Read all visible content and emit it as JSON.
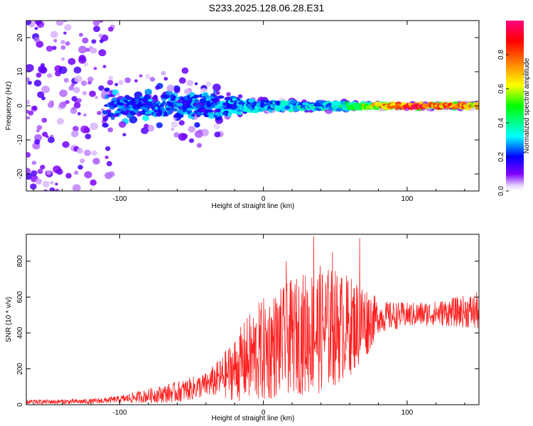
{
  "title": "S233.2025.128.06.28.E31",
  "chart_data": [
    {
      "type": "heatmap",
      "xlabel": "Height of straight line (km)",
      "ylabel": "Frequency (Hz)",
      "xlim": [
        -165,
        150
      ],
      "ylim": [
        -25,
        25
      ],
      "xticks": [
        -100,
        0,
        100
      ],
      "yticks": [
        -20,
        -10,
        0,
        10,
        20
      ],
      "colorbar": {
        "label": "Normalized spectral amplitude",
        "range": [
          0,
          1
        ],
        "ticks": [
          0.0,
          0.2,
          0.4,
          0.6,
          0.8
        ],
        "colormap": [
          "#ffffff",
          "#8000ff",
          "#0000ff",
          "#00ffff",
          "#00ff00",
          "#ffff00",
          "#ff8000",
          "#ff0000",
          "#ff0080"
        ]
      },
      "description_points": [
        {
          "x": -140,
          "spread_hz": 25,
          "amplitude": 0.15
        },
        {
          "x": -100,
          "spread_hz": 3,
          "amplitude": 0.3
        },
        {
          "x": -40,
          "spread_hz": 5,
          "amplitude": 0.3
        },
        {
          "x": 0,
          "spread_hz": 2,
          "amplitude": 0.35
        },
        {
          "x": 50,
          "spread_hz": 1.5,
          "amplitude": 0.4
        },
        {
          "x": 100,
          "spread_hz": 0.8,
          "amplitude": 0.9
        },
        {
          "x": 150,
          "spread_hz": 0.8,
          "amplitude": 0.7
        }
      ]
    },
    {
      "type": "line",
      "xlabel": "Height of straight line (km)",
      "ylabel": "SNR (10 * v/v)",
      "xlim": [
        -165,
        150
      ],
      "ylim": [
        0,
        950
      ],
      "xticks": [
        -100,
        0,
        100
      ],
      "yticks": [
        0,
        200,
        400,
        600,
        800
      ],
      "color": "#ff2020",
      "envelope": {
        "x": [
          -165,
          -120,
          -100,
          -80,
          -60,
          -40,
          -30,
          -20,
          -10,
          0,
          10,
          20,
          30,
          40,
          50,
          60,
          70,
          80,
          100,
          120,
          140,
          150
        ],
        "mean": [
          15,
          18,
          30,
          50,
          70,
          110,
          150,
          200,
          260,
          300,
          340,
          380,
          400,
          420,
          430,
          440,
          460,
          490,
          500,
          510,
          520,
          520
        ],
        "amp": [
          12,
          15,
          20,
          40,
          60,
          70,
          110,
          180,
          250,
          300,
          300,
          320,
          350,
          360,
          330,
          280,
          230,
          90,
          70,
          70,
          90,
          110
        ]
      },
      "peaks": [
        {
          "x": 35,
          "y": 940
        },
        {
          "x": 67,
          "y": 930
        },
        {
          "x": 16,
          "y": 800
        },
        {
          "x": 48,
          "y": 850
        }
      ]
    }
  ]
}
